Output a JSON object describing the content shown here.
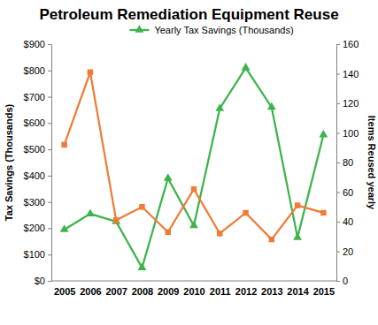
{
  "chart_data": {
    "type": "line",
    "title": "Petroleum Remediation Equipment Reuse",
    "y_label": "Tax Savings (Thousands)",
    "y2_label": "Items Reused yearly",
    "categories": [
      "2005",
      "2006",
      "2007",
      "2008",
      "2009",
      "2010",
      "2011",
      "2012",
      "2013",
      "2014",
      "2015"
    ],
    "series": [
      {
        "name": "Yearly Tax Savings (Thousands)",
        "color": "#3cb44b",
        "marker": "triangle",
        "values": [
          195,
          255,
          225,
          50,
          390,
          210,
          655,
          810,
          660,
          165,
          555
        ]
      },
      {
        "color": "#f07b35",
        "marker": "square",
        "axis": "y2",
        "values": [
          92,
          141,
          41,
          50,
          33,
          62,
          32,
          46,
          28,
          51,
          46
        ]
      }
    ],
    "ylim": [
      0,
      900
    ],
    "yticks": [
      {
        "value": 0,
        "label": "$0"
      },
      {
        "value": 100,
        "label": "$100"
      },
      {
        "value": 200,
        "label": "$200"
      },
      {
        "value": 300,
        "label": "$300"
      },
      {
        "value": 400,
        "label": "$400"
      },
      {
        "value": 500,
        "label": "$500"
      },
      {
        "value": 600,
        "label": "$600"
      },
      {
        "value": 700,
        "label": "$700"
      },
      {
        "value": 800,
        "label": "$800"
      },
      {
        "value": 900,
        "label": "$900"
      }
    ],
    "y2lim": [
      0,
      160
    ],
    "y2ticks": [
      0,
      20,
      40,
      60,
      80,
      100,
      120,
      140,
      160
    ],
    "grid": false,
    "legend": "top"
  }
}
